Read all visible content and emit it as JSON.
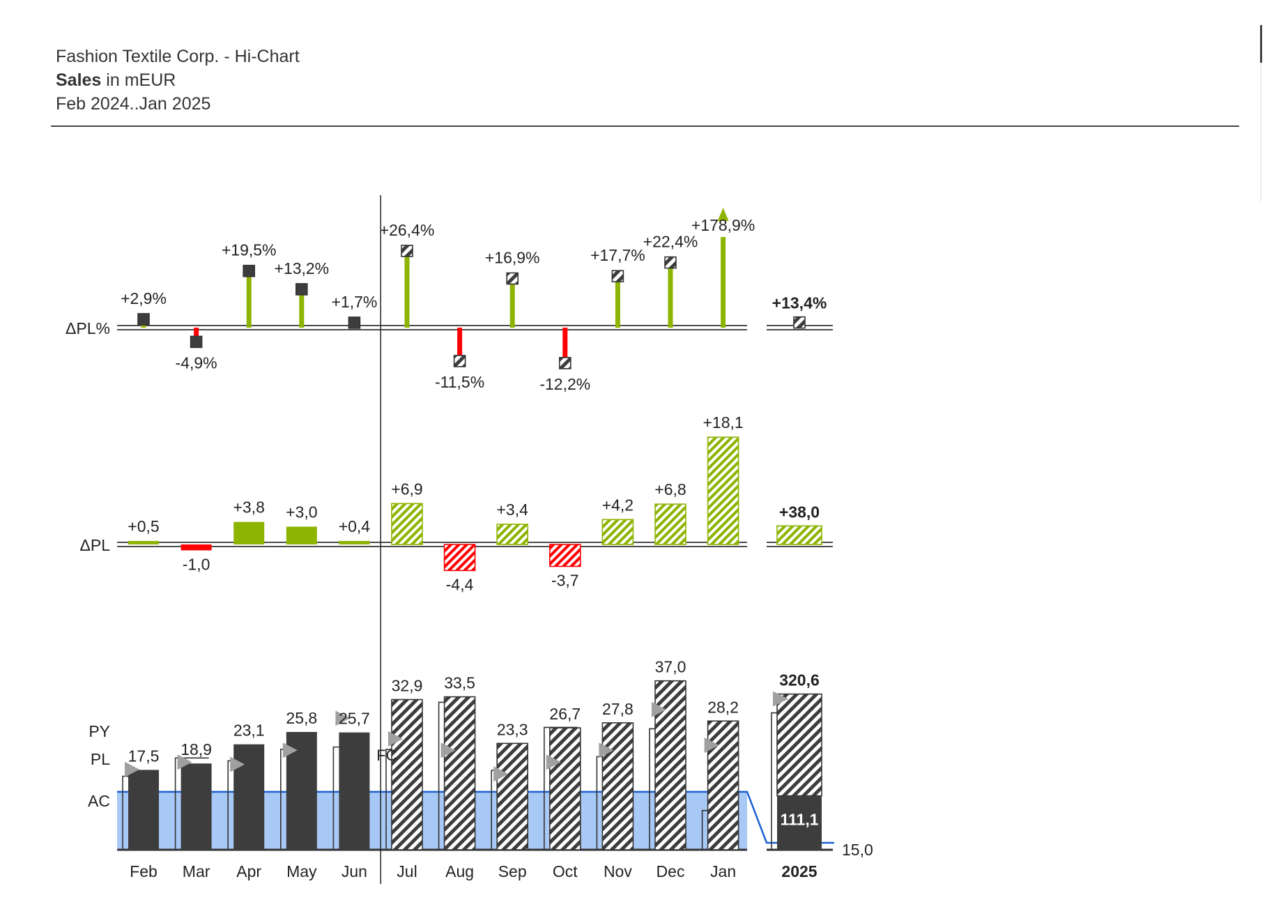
{
  "header": {
    "line1": "Fashion Textile Corp. - Hi-Chart",
    "line2_bold": "Sales",
    "line2_rest": " in mEUR",
    "line3": "Feb 2024..Jan 2025"
  },
  "colors": {
    "actual": "#3d3d3d",
    "positive": "#8cb400",
    "negative": "#ff0000",
    "plan_band": "#a8c8f5",
    "plan_line": "#1a5fd0",
    "py_marker": "#a0a0a0",
    "axis": "#333333"
  },
  "chart_data": {
    "type": "bar",
    "categories": [
      "Feb",
      "Mar",
      "Apr",
      "May",
      "Jun",
      "Jul",
      "Aug",
      "Sep",
      "Oct",
      "Nov",
      "Dec",
      "Jan"
    ],
    "forecast_from_index": 5,
    "row_labels": {
      "delta_pl_pct": "ΔPL%",
      "delta_pl": "ΔPL",
      "py": "PY",
      "pl": "PL",
      "ac": "AC"
    },
    "fc_label": "FC",
    "main": {
      "ac_fc_values": [
        17.5,
        18.9,
        23.1,
        25.8,
        25.7,
        32.9,
        33.5,
        23.3,
        26.7,
        27.8,
        37.0,
        28.2
      ],
      "value_labels": [
        "17,5",
        "18,9",
        "23,1",
        "25,8",
        "25,7",
        "32,9",
        "33,5",
        "23,3",
        "26,7",
        "27,8",
        "37,0",
        "28,2"
      ],
      "py_values": [
        16.1,
        20.1,
        19.5,
        22.0,
        22.5,
        22.0,
        32.3,
        17.4,
        26.8,
        20.4,
        26.5,
        8.6
      ],
      "pl_values": [
        12.7,
        12.7,
        12.7,
        12.7,
        12.7,
        12.7,
        12.7,
        12.7,
        12.7,
        12.7,
        12.7,
        12.7
      ],
      "py_marker_values": [
        17.6,
        19.2,
        18.7,
        21.8,
        28.8,
        24.3,
        21.8,
        16.6,
        19.2,
        21.8,
        30.7,
        22.9
      ]
    },
    "delta_pl": {
      "values": [
        0.5,
        -1.0,
        3.8,
        3.0,
        0.4,
        6.9,
        -4.4,
        3.4,
        -3.7,
        4.2,
        6.8,
        18.1
      ],
      "labels": [
        "+0,5",
        "-1,0",
        "+3,8",
        "+3,0",
        "+0,4",
        "+6,9",
        "-4,4",
        "+3,4",
        "-3,7",
        "+4,2",
        "+6,8",
        "+18,1"
      ]
    },
    "delta_pl_pct": {
      "values": [
        2.9,
        -4.9,
        19.5,
        13.2,
        1.7,
        26.4,
        -11.5,
        16.9,
        -12.2,
        17.7,
        22.4,
        178.9
      ],
      "labels": [
        "+2,9%",
        "-4,9%",
        "+19,5%",
        "+13,2%",
        "+1,7%",
        "+26,4%",
        "-11,5%",
        "+16,9%",
        "-12,2%",
        "+17,7%",
        "+22,4%",
        "+178,9%"
      ],
      "truncated_index": 11
    },
    "total": {
      "label": "2025",
      "value": 320.6,
      "value_label": "320,6",
      "ac_part": 111.1,
      "ac_part_label": "111,1",
      "pl_value": 15.0,
      "pl_label": "15,0",
      "delta_pl": 38.0,
      "delta_pl_label": "+38,0",
      "delta_pl_pct": 13.4,
      "delta_pl_pct_label": "+13,4%"
    }
  }
}
